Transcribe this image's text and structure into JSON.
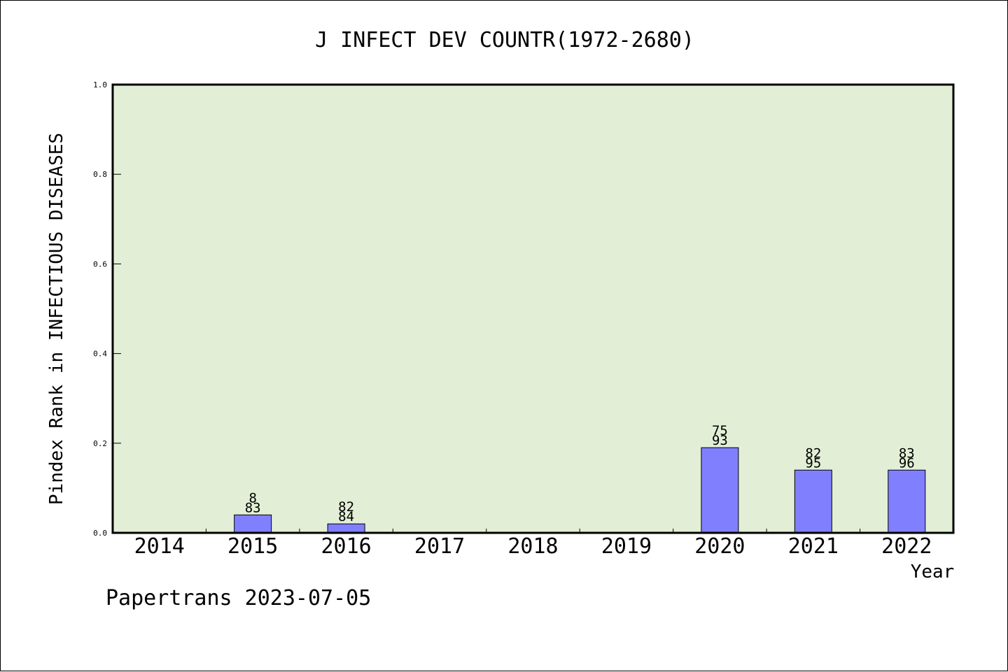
{
  "chart_data": {
    "type": "bar",
    "title": "J INFECT DEV COUNTR(1972-2680)",
    "xlabel": "Year",
    "ylabel": "Pindex Rank in INFECTIOUS DISEASES",
    "categories": [
      "2014",
      "2015",
      "2016",
      "2017",
      "2018",
      "2019",
      "2020",
      "2021",
      "2022"
    ],
    "values": [
      0,
      0.04,
      0.02,
      0,
      0,
      0,
      0.19,
      0.14,
      0.14
    ],
    "bar_labels": [
      [],
      [
        "8",
        "83"
      ],
      [
        "82",
        "84"
      ],
      [],
      [],
      [],
      [
        "75",
        "93"
      ],
      [
        "82",
        "95"
      ],
      [
        "83",
        "96"
      ]
    ],
    "ylim": [
      0,
      1.0
    ],
    "yticks": [
      "0.0",
      "0.2",
      "0.4",
      "0.6",
      "0.8",
      "1.0"
    ],
    "grid": false,
    "legend": "none",
    "colors": {
      "plot_background": "#e2efd6",
      "bar_fill": "#8080ff",
      "bar_stroke": "#000000",
      "axis": "#000000"
    }
  },
  "footer": {
    "text": "Papertrans 2023-07-05"
  }
}
